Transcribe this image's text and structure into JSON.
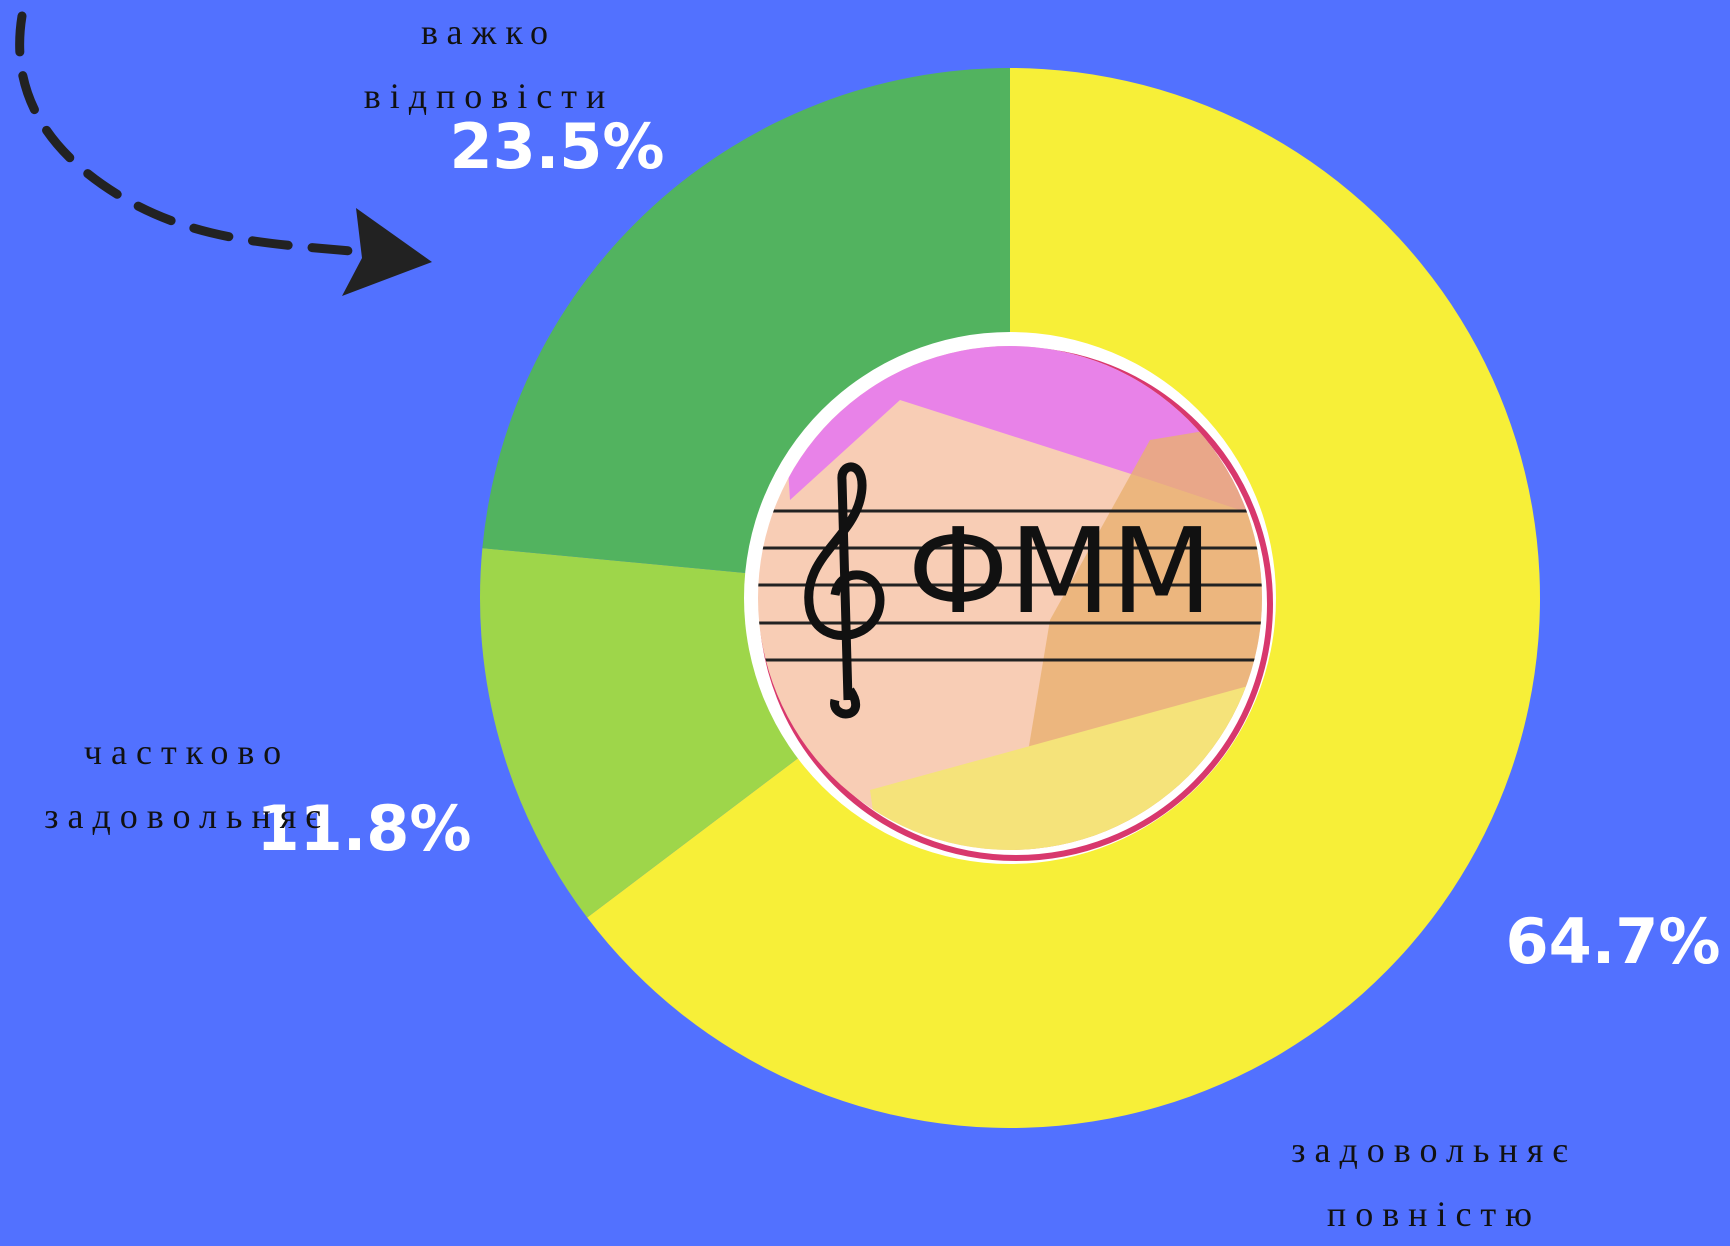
{
  "chart_data": {
    "type": "donut",
    "categories": [
      "задовольняє повністю",
      "частково задовольняє",
      "важко відповісти"
    ],
    "values": [
      64.7,
      11.8,
      23.5
    ],
    "value_labels": [
      "64.7%",
      "11.8%",
      "23.5%"
    ],
    "colors": [
      "#f7ef38",
      "#9ed64a",
      "#52b35f"
    ],
    "logo": "ФММ"
  }
}
